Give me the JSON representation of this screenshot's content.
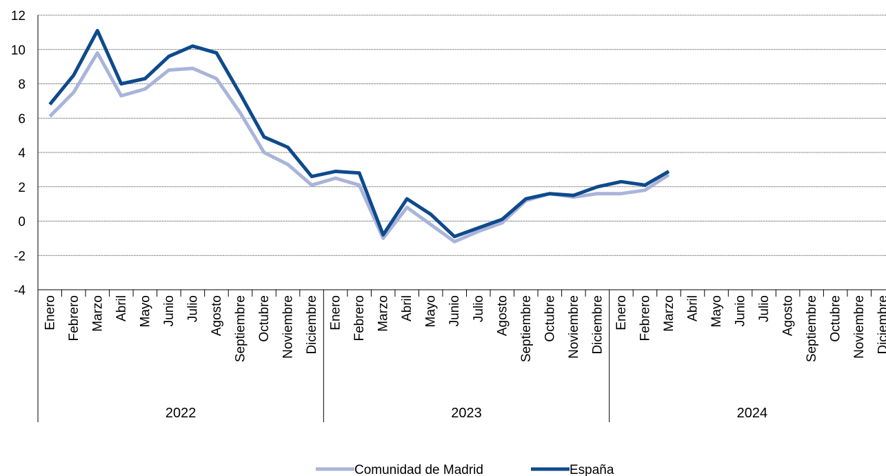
{
  "chart_data": {
    "type": "line",
    "title": "",
    "xlabel": "",
    "ylabel": "",
    "ylim": [
      -4,
      12
    ],
    "yticks": [
      "12",
      "10",
      "8",
      "6",
      "4",
      "2",
      "0",
      "-2",
      "-4"
    ],
    "ytick_values": [
      12,
      10,
      8,
      6,
      4,
      2,
      0,
      -2,
      -4
    ],
    "grid": "horizontal dotted",
    "legend": "bottom-center",
    "years": [
      "2022",
      "2023",
      "2024"
    ],
    "months": [
      "Enero",
      "Febrero",
      "Marzo",
      "Abril",
      "Mayo",
      "Junio",
      "Julio",
      "Agosto",
      "Septiembre",
      "Octubre",
      "Noviembre",
      "Diciembre"
    ],
    "series": [
      {
        "name": "Comunidad de Madrid",
        "color": "#A9B4DA",
        "values": [
          6.1,
          7.5,
          9.8,
          7.3,
          7.7,
          8.8,
          8.9,
          8.3,
          6.3,
          4.0,
          3.3,
          2.1,
          2.5,
          2.1,
          -1.0,
          0.8,
          -0.2,
          -1.2,
          -0.6,
          -0.1,
          1.2,
          1.6,
          1.4,
          1.6,
          1.6,
          1.8,
          2.7
        ]
      },
      {
        "name": "España",
        "color": "#0E4A8C",
        "values": [
          6.8,
          8.5,
          11.1,
          8.0,
          8.3,
          9.6,
          10.2,
          9.8,
          7.4,
          4.9,
          4.3,
          2.6,
          2.9,
          2.8,
          -0.8,
          1.3,
          0.4,
          -0.9,
          -0.4,
          0.1,
          1.3,
          1.6,
          1.5,
          2.0,
          2.3,
          2.1,
          2.9
        ]
      }
    ]
  }
}
